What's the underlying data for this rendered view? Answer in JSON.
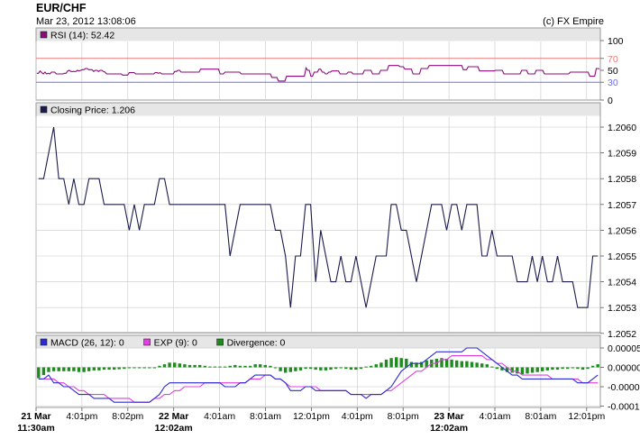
{
  "header": {
    "symbol": "EUR/CHF",
    "timestamp": "Mar 23, 2012 13:08:06",
    "credit": "(c) FX Empire"
  },
  "colors": {
    "panel_border": "#999999",
    "legend_bg": "#e6e6e6",
    "grid": "#c8c8c8",
    "rsi_line": "#8b0a7a",
    "rsi_upper": "#e87a7a",
    "rsi_lower": "#7070e0",
    "price_line": "#1b1b4d",
    "macd_line": "#2a2ad6",
    "exp_line": "#e040e0",
    "divergence": "#1f8a1f"
  },
  "time_labels": [
    {
      "label": "21 Mar",
      "sub": "11:30am",
      "bold": true
    },
    {
      "label": "4:01pm",
      "sub": "",
      "bold": false
    },
    {
      "label": "8:02pm",
      "sub": "",
      "bold": false
    },
    {
      "label": "22 Mar",
      "sub": "12:02am",
      "bold": true
    },
    {
      "label": "4:01am",
      "sub": "",
      "bold": false
    },
    {
      "label": "8:01am",
      "sub": "",
      "bold": false
    },
    {
      "label": "12:01pm",
      "sub": "",
      "bold": false
    },
    {
      "label": "4:01pm",
      "sub": "",
      "bold": false
    },
    {
      "label": "8:01pm",
      "sub": "",
      "bold": false
    },
    {
      "label": "23 Mar",
      "sub": "12:02am",
      "bold": true
    },
    {
      "label": "4:01am",
      "sub": "",
      "bold": false
    },
    {
      "label": "8:01am",
      "sub": "",
      "bold": false
    },
    {
      "label": "12:01pm",
      "sub": "",
      "bold": false
    }
  ],
  "chart_data": [
    {
      "type": "line",
      "title": "RSI (14): 52.42",
      "legend": [
        "RSI (14): 52.42"
      ],
      "ylim": [
        0,
        100
      ],
      "yticks": [
        "100",
        "70",
        "50",
        "30",
        "0"
      ],
      "reference_lines": [
        70,
        30
      ],
      "series": [
        {
          "name": "RSI (14)",
          "values": [
            45,
            45,
            49,
            46,
            44,
            47,
            44,
            45,
            44,
            47,
            47,
            47,
            44,
            44,
            44,
            44,
            44,
            45,
            45,
            49,
            50,
            48,
            48,
            48,
            48,
            50,
            49,
            50,
            51,
            51,
            53,
            53,
            51,
            51,
            51,
            48,
            50,
            50,
            48,
            50,
            50,
            48,
            47,
            44,
            44,
            44,
            44,
            44,
            44,
            44,
            44,
            44,
            44,
            42,
            42,
            42,
            42,
            46,
            46,
            46,
            46,
            44,
            44,
            44,
            44,
            44,
            44,
            44,
            44,
            44,
            44,
            44,
            44,
            46,
            46,
            45,
            46,
            44,
            44,
            44,
            44,
            44,
            44,
            44,
            44,
            48,
            48,
            50,
            50,
            47,
            47,
            47,
            47,
            47,
            47,
            47,
            47,
            47,
            47,
            47,
            47,
            52,
            52,
            52,
            52,
            52,
            52,
            52,
            52,
            52,
            52,
            52,
            52,
            44,
            44,
            44,
            47,
            47,
            47,
            47,
            47,
            47,
            47,
            47,
            47,
            47,
            44,
            44,
            44,
            44,
            44,
            44,
            44,
            44,
            44,
            44,
            44,
            44,
            44,
            44,
            44,
            44,
            44,
            44,
            44,
            38,
            38,
            38,
            38,
            32,
            32,
            32,
            32,
            32,
            40,
            40,
            40,
            40,
            40,
            40,
            40,
            40,
            40,
            40,
            40,
            40,
            54,
            50,
            50,
            40,
            40,
            47,
            47,
            47,
            52,
            52,
            47,
            47,
            44,
            44,
            47,
            47,
            49,
            49,
            49,
            49,
            49,
            44,
            44,
            44,
            44,
            44,
            47,
            47,
            47,
            44,
            44,
            44,
            44,
            44,
            44,
            44,
            50,
            50,
            50,
            50,
            50,
            44,
            44,
            44,
            44,
            44,
            50,
            50,
            50,
            50,
            50,
            58,
            58,
            58,
            58,
            58,
            58,
            58,
            56,
            56,
            56,
            52,
            52,
            52,
            52,
            52,
            44,
            44,
            44,
            44,
            44,
            53,
            53,
            53,
            53,
            53,
            58,
            58,
            58,
            58,
            58,
            58,
            58,
            58,
            58,
            58,
            58,
            58,
            58,
            58,
            58,
            58,
            58,
            58,
            58,
            58,
            58,
            51,
            51,
            51,
            56,
            56,
            56,
            56,
            56,
            56,
            56,
            49,
            49,
            49,
            49,
            49,
            49,
            49,
            49,
            49,
            49,
            50,
            50,
            50,
            50,
            50,
            44,
            44,
            44,
            44,
            44,
            44,
            44,
            44,
            44,
            44,
            44,
            50,
            50,
            50,
            50,
            44,
            44,
            44,
            44,
            44,
            50,
            50,
            50,
            50,
            50,
            44,
            44,
            44,
            44,
            44,
            44,
            44,
            44,
            44,
            44,
            44,
            44,
            44,
            44,
            44,
            44,
            47,
            47,
            47,
            47,
            47,
            47,
            47,
            47,
            47,
            47,
            47,
            47,
            40,
            40,
            40,
            40,
            53,
            53,
            52.42
          ]
        }
      ]
    },
    {
      "type": "line",
      "title": "Closing Price: 1.206",
      "legend": [
        "Closing Price: 1.206"
      ],
      "ylim": [
        1.2052,
        1.2061
      ],
      "yticks": [
        "1.2060",
        "1.2059",
        "1.2058",
        "1.2057",
        "1.2056",
        "1.2055",
        "1.2054",
        "1.2053",
        "1.2052"
      ],
      "series": [
        {
          "name": "Closing Price",
          "values": [
            1.2058,
            1.2058,
            1.2059,
            1.206,
            1.2058,
            1.2058,
            1.2057,
            1.2058,
            1.2057,
            1.2057,
            1.2058,
            1.2058,
            1.2058,
            1.2057,
            1.2057,
            1.2057,
            1.2057,
            1.2057,
            1.2056,
            1.2057,
            1.2056,
            1.2057,
            1.2057,
            1.2057,
            1.2058,
            1.2058,
            1.2057,
            1.2057,
            1.2057,
            1.2057,
            1.2057,
            1.2057,
            1.2057,
            1.2057,
            1.2057,
            1.2057,
            1.2057,
            1.2057,
            1.2055,
            1.2056,
            1.2057,
            1.2057,
            1.2057,
            1.2057,
            1.2057,
            1.2057,
            1.2057,
            1.2056,
            1.2056,
            1.2055,
            1.2053,
            1.2055,
            1.2055,
            1.2057,
            1.2057,
            1.2054,
            1.2056,
            1.2055,
            1.2054,
            1.2054,
            1.2055,
            1.2054,
            1.2054,
            1.2055,
            1.2054,
            1.2053,
            1.2054,
            1.2055,
            1.2055,
            1.2055,
            1.2057,
            1.2057,
            1.2056,
            1.2056,
            1.2055,
            1.2054,
            1.2055,
            1.2056,
            1.2057,
            1.2057,
            1.2057,
            1.2056,
            1.2057,
            1.2057,
            1.2056,
            1.2057,
            1.2057,
            1.2057,
            1.2055,
            1.2055,
            1.2056,
            1.2055,
            1.2055,
            1.2055,
            1.2055,
            1.2054,
            1.2054,
            1.2054,
            1.2055,
            1.2054,
            1.2055,
            1.2054,
            1.2054,
            1.2055,
            1.2054,
            1.2054,
            1.2054,
            1.2053,
            1.2053,
            1.2053,
            1.2055,
            1.2055
          ]
        }
      ]
    },
    {
      "type": "line",
      "title": "MACD (26, 12): 0",
      "legend": [
        "MACD (26, 12): 0",
        "EXP (9): 0",
        "Divergence: 0"
      ],
      "ylim": [
        -0.00015,
        0.0001
      ],
      "yticks": [
        "0.00005",
        "0.00000",
        "-0.00005",
        "-0.00010"
      ],
      "series": [
        {
          "name": "MACD (26, 12)",
          "values": [
            -3e-05,
            -3e-05,
            -2e-05,
            -4e-05,
            -4e-05,
            -5e-05,
            -5e-05,
            -6e-05,
            -7e-05,
            -7e-05,
            -7e-05,
            -8e-05,
            -8e-05,
            -8e-05,
            -8e-05,
            -9e-05,
            -9e-05,
            -9e-05,
            -9e-05,
            -9e-05,
            -9e-05,
            -9e-05,
            -9e-05,
            -8e-05,
            -7e-05,
            -5e-05,
            -4e-05,
            -4e-05,
            -4e-05,
            -4e-05,
            -4e-05,
            -4e-05,
            -4e-05,
            -4e-05,
            -4e-05,
            -4e-05,
            -4e-05,
            -5e-05,
            -5e-05,
            -5e-05,
            -4e-05,
            -4e-05,
            -3e-05,
            -2e-05,
            -2e-05,
            -2e-05,
            -2e-05,
            -3e-05,
            -3e-05,
            -4e-05,
            -6e-05,
            -6e-05,
            -6e-05,
            -5e-05,
            -5e-05,
            -6e-05,
            -6e-05,
            -6e-05,
            -6e-05,
            -6e-05,
            -6e-05,
            -6e-05,
            -7e-05,
            -7e-05,
            -7e-05,
            -8e-05,
            -7e-05,
            -7e-05,
            -7e-05,
            -6e-05,
            -5e-05,
            -3e-05,
            -1e-05,
            0.0,
            1e-05,
            1e-05,
            1e-05,
            2e-05,
            3e-05,
            4e-05,
            4e-05,
            4e-05,
            4e-05,
            4e-05,
            4e-05,
            5e-05,
            5e-05,
            5e-05,
            4e-05,
            3e-05,
            2e-05,
            1e-05,
            0.0,
            -1e-05,
            -2e-05,
            -2e-05,
            -3e-05,
            -3e-05,
            -3e-05,
            -3e-05,
            -3e-05,
            -3e-05,
            -3e-05,
            -3e-05,
            -3e-05,
            -3e-05,
            -3e-05,
            -4e-05,
            -4e-05,
            -4e-05,
            -3e-05,
            -2e-05
          ]
        },
        {
          "name": "EXP (9)",
          "values": [
            -3e-05,
            -3e-05,
            -3e-05,
            -3e-05,
            -4e-05,
            -4e-05,
            -5e-05,
            -5e-05,
            -6e-05,
            -6e-05,
            -7e-05,
            -7e-05,
            -7e-05,
            -7e-05,
            -8e-05,
            -8e-05,
            -8e-05,
            -8e-05,
            -8e-05,
            -9e-05,
            -9e-05,
            -9e-05,
            -9e-05,
            -8e-05,
            -8e-05,
            -7e-05,
            -7e-05,
            -6e-05,
            -6e-05,
            -5e-05,
            -5e-05,
            -5e-05,
            -5e-05,
            -4e-05,
            -4e-05,
            -4e-05,
            -4e-05,
            -4e-05,
            -4e-05,
            -4e-05,
            -4e-05,
            -4e-05,
            -3e-05,
            -3e-05,
            -3e-05,
            -2e-05,
            -2e-05,
            -3e-05,
            -3e-05,
            -4e-05,
            -5e-05,
            -5e-05,
            -5e-05,
            -5e-05,
            -5e-05,
            -5e-05,
            -6e-05,
            -6e-05,
            -6e-05,
            -6e-05,
            -6e-05,
            -6e-05,
            -7e-05,
            -7e-05,
            -7e-05,
            -7e-05,
            -7e-05,
            -7e-05,
            -7e-05,
            -6e-05,
            -6e-05,
            -5e-05,
            -4e-05,
            -3e-05,
            -2e-05,
            -1e-05,
            -1e-05,
            0.0,
            1e-05,
            1e-05,
            2e-05,
            2e-05,
            3e-05,
            3e-05,
            3e-05,
            3e-05,
            3e-05,
            3e-05,
            3e-05,
            2e-05,
            2e-05,
            1e-05,
            1e-05,
            0.0,
            -1e-05,
            -1e-05,
            -2e-05,
            -2e-05,
            -2e-05,
            -2e-05,
            -2e-05,
            -2e-05,
            -3e-05,
            -3e-05,
            -3e-05,
            -3e-05,
            -3e-05,
            -3e-05,
            -4e-05,
            -4e-05,
            -4e-05,
            -4e-05
          ]
        },
        {
          "name": "Divergence",
          "values": [
            -2.8e-05,
            -2e-05,
            -1.2e-05,
            -1e-05,
            -1e-05,
            -1e-05,
            -1e-05,
            -1e-05,
            -1.2e-05,
            -1.2e-05,
            -1e-05,
            -8e-06,
            -8e-06,
            -6e-06,
            -6e-06,
            -6e-06,
            -5e-06,
            -4e-06,
            -2e-06,
            -2e-06,
            -2e-06,
            -2e-06,
            -2e-06,
            -2e-06,
            4e-06,
            8e-06,
            1.2e-05,
            1.2e-05,
            1e-05,
            8e-06,
            6e-06,
            6e-06,
            6e-06,
            4e-06,
            2e-06,
            2e-06,
            2e-06,
            2e-06,
            4e-06,
            6e-06,
            4e-06,
            4e-06,
            4e-06,
            8e-06,
            8e-06,
            6e-06,
            4e-06,
            -2e-06,
            -1e-05,
            -1.4e-05,
            -1.2e-05,
            -1e-05,
            -8e-06,
            -4e-06,
            -4e-06,
            -6e-06,
            -8e-06,
            -8e-06,
            -6e-06,
            -4e-06,
            -2e-06,
            -4e-06,
            -6e-06,
            -6e-06,
            -4e-06,
            2e-06,
            4e-06,
            8e-06,
            1.2e-05,
            2e-05,
            2.4e-05,
            2.6e-05,
            2.4e-05,
            2.2e-05,
            1.4e-05,
            1.2e-05,
            1.4e-05,
            1.8e-05,
            2e-05,
            2.2e-05,
            2.4e-05,
            2.2e-05,
            2e-05,
            1.8e-05,
            1.6e-05,
            1.6e-05,
            1.4e-05,
            1.2e-05,
            1e-05,
            8e-06,
            2e-06,
            -4e-06,
            -8e-06,
            -1.2e-05,
            -1.4e-05,
            -1.6e-05,
            -1.8e-05,
            -1.6e-05,
            -1.4e-05,
            -1.2e-05,
            -1e-05,
            -8e-06,
            -6e-06,
            -6e-06,
            -4e-06,
            -4e-06,
            -2e-06,
            -4e-06,
            -6e-06,
            -4e-06,
            4e-06,
            8e-06
          ]
        }
      ]
    }
  ]
}
